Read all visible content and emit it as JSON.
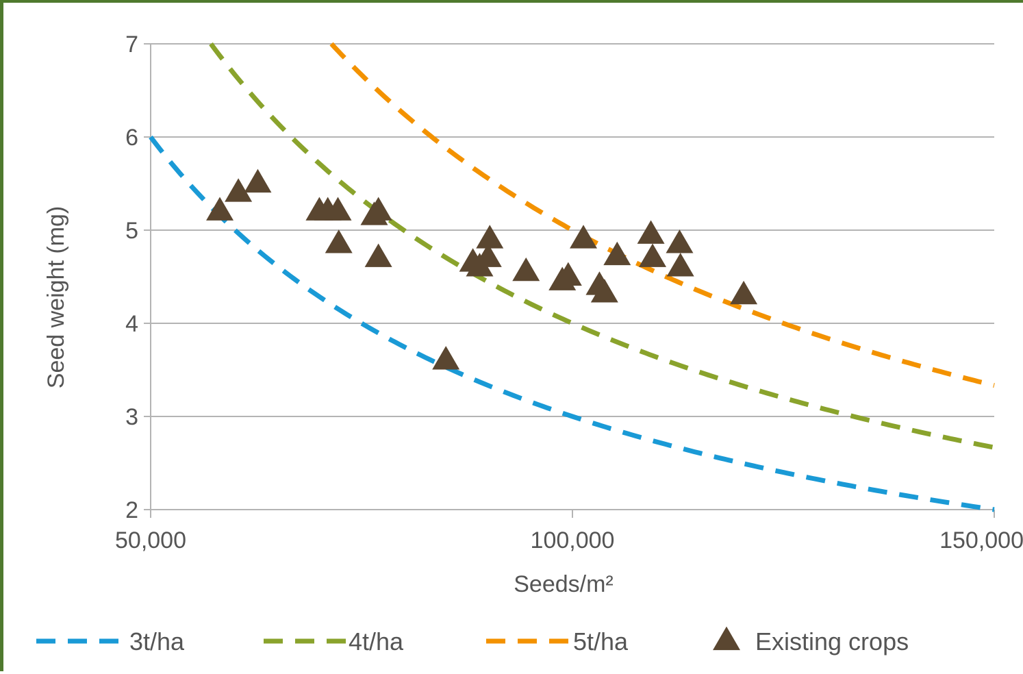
{
  "chart_data": {
    "type": "scatter",
    "title": "",
    "xlabel": "Seeds/m²",
    "ylabel": "Seed weight (mg)",
    "xlim": [
      50000,
      150000
    ],
    "ylim": [
      2,
      7
    ],
    "x_ticks": [
      50000,
      100000,
      150000
    ],
    "x_tick_labels": [
      "50,000",
      "100,000",
      "150,000"
    ],
    "y_ticks": [
      2,
      3,
      4,
      5,
      6,
      7
    ],
    "y_tick_labels": [
      "2",
      "3",
      "4",
      "5",
      "6",
      "7"
    ],
    "grid": "horizontal",
    "legend_position": "bottom",
    "series": [
      {
        "name": "3t/ha",
        "kind": "dashed-line",
        "color": "#1a9ad6",
        "yield_t_ha": 3,
        "points": [
          [
            50000,
            6.0
          ],
          [
            55000,
            5.45
          ],
          [
            60000,
            5.0
          ],
          [
            65000,
            4.62
          ],
          [
            70000,
            4.29
          ],
          [
            75000,
            4.0
          ],
          [
            80000,
            3.75
          ],
          [
            85000,
            3.53
          ],
          [
            90000,
            3.33
          ],
          [
            95000,
            3.16
          ],
          [
            100000,
            3.0
          ],
          [
            105000,
            2.86
          ],
          [
            110000,
            2.73
          ],
          [
            115000,
            2.61
          ],
          [
            120000,
            2.5
          ],
          [
            125000,
            2.4
          ],
          [
            130000,
            2.31
          ],
          [
            135000,
            2.22
          ],
          [
            140000,
            2.14
          ],
          [
            145000,
            2.07
          ],
          [
            150000,
            2.0
          ]
        ]
      },
      {
        "name": "4t/ha",
        "kind": "dashed-line",
        "color": "#8aa32c",
        "yield_t_ha": 4,
        "points": [
          [
            57143,
            7.0
          ],
          [
            60000,
            6.67
          ],
          [
            65000,
            6.15
          ],
          [
            70000,
            5.71
          ],
          [
            75000,
            5.33
          ],
          [
            80000,
            5.0
          ],
          [
            85000,
            4.71
          ],
          [
            90000,
            4.44
          ],
          [
            95000,
            4.21
          ],
          [
            100000,
            4.0
          ],
          [
            105000,
            3.81
          ],
          [
            110000,
            3.64
          ],
          [
            115000,
            3.48
          ],
          [
            120000,
            3.33
          ],
          [
            125000,
            3.2
          ],
          [
            130000,
            3.08
          ],
          [
            135000,
            2.96
          ],
          [
            140000,
            2.86
          ],
          [
            145000,
            2.76
          ],
          [
            150000,
            2.67
          ]
        ]
      },
      {
        "name": "5t/ha",
        "kind": "dashed-line",
        "color": "#f39200",
        "yield_t_ha": 5,
        "points": [
          [
            71429,
            7.0
          ],
          [
            75000,
            6.67
          ],
          [
            80000,
            6.25
          ],
          [
            85000,
            5.88
          ],
          [
            90000,
            5.56
          ],
          [
            95000,
            5.26
          ],
          [
            100000,
            5.0
          ],
          [
            105000,
            4.76
          ],
          [
            110000,
            4.55
          ],
          [
            115000,
            4.35
          ],
          [
            120000,
            4.17
          ],
          [
            125000,
            4.0
          ],
          [
            130000,
            3.85
          ],
          [
            135000,
            3.7
          ],
          [
            140000,
            3.57
          ],
          [
            145000,
            3.45
          ],
          [
            150000,
            3.33
          ]
        ]
      },
      {
        "name": "Existing crops",
        "kind": "triangle-marker",
        "color": "#5a4630",
        "points": [
          [
            58200,
            5.2
          ],
          [
            60400,
            5.4
          ],
          [
            62700,
            5.5
          ],
          [
            70000,
            5.2
          ],
          [
            71000,
            5.2
          ],
          [
            72200,
            5.2
          ],
          [
            72300,
            4.85
          ],
          [
            76500,
            5.15
          ],
          [
            77000,
            5.2
          ],
          [
            77000,
            4.7
          ],
          [
            85000,
            3.6
          ],
          [
            88200,
            4.65
          ],
          [
            89000,
            4.6
          ],
          [
            90000,
            4.7
          ],
          [
            90200,
            4.9
          ],
          [
            94500,
            4.55
          ],
          [
            98800,
            4.45
          ],
          [
            99500,
            4.5
          ],
          [
            101300,
            4.9
          ],
          [
            103200,
            4.4
          ],
          [
            103800,
            4.32
          ],
          [
            105300,
            4.72
          ],
          [
            109300,
            4.95
          ],
          [
            109500,
            4.7
          ],
          [
            112700,
            4.85
          ],
          [
            112800,
            4.6
          ],
          [
            120300,
            4.3
          ]
        ]
      }
    ]
  },
  "legend": {
    "items": [
      {
        "label": "3t/ha",
        "color": "#1a9ad6",
        "kind": "dashed-line"
      },
      {
        "label": "4t/ha",
        "color": "#8aa32c",
        "kind": "dashed-line"
      },
      {
        "label": "5t/ha",
        "color": "#f39200",
        "kind": "dashed-line"
      },
      {
        "label": "Existing crops",
        "color": "#5a4630",
        "kind": "triangle-marker"
      }
    ]
  },
  "colors": {
    "frame": "#4f7a2e",
    "grid": "#b4b4b4",
    "axis": "#b4b4b4",
    "text": "#555555"
  }
}
